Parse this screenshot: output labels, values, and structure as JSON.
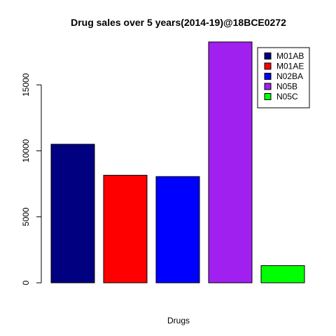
{
  "chart_data": {
    "type": "bar",
    "title": "Drug sales over 5 years(2014-19)@18BCE0272",
    "xlabel": "Drugs",
    "ylabel": "",
    "categories": [
      "M01AB",
      "M01AE",
      "N02BA",
      "N05B",
      "N05C"
    ],
    "values": [
      10500,
      8150,
      8050,
      18250,
      1300
    ],
    "colors": [
      "#000080",
      "#ff0000",
      "#0000ff",
      "#a020f0",
      "#00ff00"
    ],
    "ylim": [
      0,
      18300
    ],
    "yticks": [
      0,
      5000,
      10000,
      15000
    ],
    "grid": false,
    "legend": {
      "placement": "top-right",
      "entries": [
        {
          "label": "M01AB",
          "color": "#000080"
        },
        {
          "label": "M01AE",
          "color": "#ff0000"
        },
        {
          "label": "N02BA",
          "color": "#0000ff"
        },
        {
          "label": "N05B",
          "color": "#a020f0"
        },
        {
          "label": "N05C",
          "color": "#00ff00"
        }
      ]
    }
  }
}
